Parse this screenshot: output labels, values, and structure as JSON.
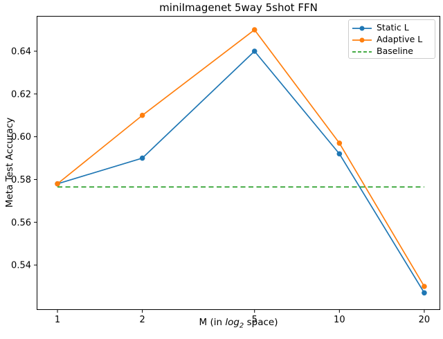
{
  "chart_data": {
    "type": "line",
    "title": "miniImagenet 5way 5shot FFN",
    "ylabel": "Meta Test Accuracy",
    "xlabel": {
      "prefix": "M (in ",
      "math": "log",
      "sub": "2",
      "suffix": " space)"
    },
    "x_scale": "log2",
    "axes": {
      "xlim_log2": [
        -0.245,
        4.51
      ],
      "ylim": [
        0.519,
        0.6565
      ],
      "grid": false,
      "spine_color": "#000000",
      "background": "#ffffff"
    },
    "x_ticks": [
      {
        "v": 1,
        "label": "1"
      },
      {
        "v": 2,
        "label": "2"
      },
      {
        "v": 5,
        "label": "5"
      },
      {
        "v": 10,
        "label": "10"
      },
      {
        "v": 20,
        "label": "20"
      }
    ],
    "y_ticks": [
      {
        "v": 0.54,
        "label": "0.54"
      },
      {
        "v": 0.56,
        "label": "0.56"
      },
      {
        "v": 0.58,
        "label": "0.58"
      },
      {
        "v": 0.6,
        "label": "0.60"
      },
      {
        "v": 0.62,
        "label": "0.62"
      },
      {
        "v": 0.64,
        "label": "0.64"
      }
    ],
    "series": [
      {
        "name": "Static L",
        "color": "#1f77b4",
        "style": "solid",
        "marker": "circle",
        "x": [
          1,
          2,
          5,
          10,
          20
        ],
        "y": [
          0.578,
          0.59,
          0.64,
          0.592,
          0.527
        ]
      },
      {
        "name": "Adaptive L",
        "color": "#ff7f0e",
        "style": "solid",
        "marker": "circle",
        "x": [
          1,
          2,
          5,
          10,
          20
        ],
        "y": [
          0.578,
          0.61,
          0.65,
          0.597,
          0.53
        ]
      },
      {
        "name": "Baseline",
        "color": "#2ca02c",
        "style": "dashed",
        "marker": "none",
        "x": [
          1,
          20
        ],
        "y": [
          0.5765,
          0.5765
        ]
      }
    ],
    "legend": {
      "position": "upper right"
    }
  }
}
